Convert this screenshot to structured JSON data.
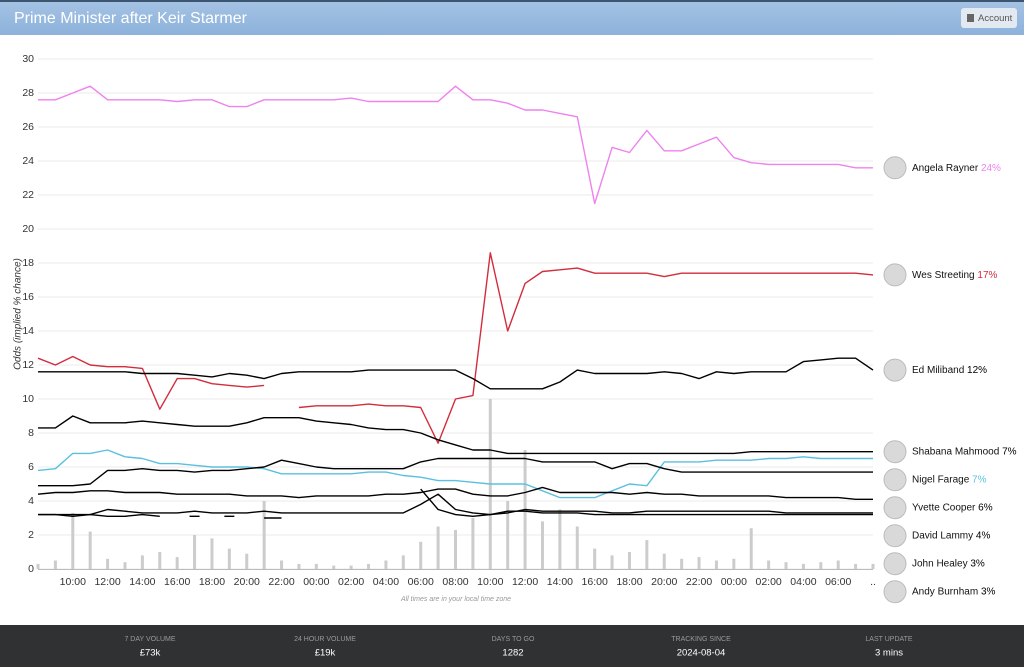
{
  "header": {
    "title": "Prime Minister after Keir Starmer",
    "account": "Account"
  },
  "chart_data": {
    "type": "line",
    "y_label": "Odds (implied % chance)",
    "note": "All times are in your local time zone",
    "categories": [
      null,
      null,
      "10:00",
      null,
      "12:00",
      null,
      "14:00",
      null,
      "16:00",
      null,
      "18:00",
      null,
      "20:00",
      null,
      "22:00",
      null,
      "00:00",
      null,
      "02:00",
      null,
      "04:00",
      null,
      "06:00",
      null,
      "08:00",
      null,
      "10:00",
      null,
      "12:00",
      null,
      "14:00",
      null,
      "16:00",
      null,
      "18:00",
      null,
      "20:00",
      null,
      "22:00",
      null,
      "00:00",
      null,
      "02:00",
      null,
      "04:00",
      null,
      "06:00",
      null,
      ".."
    ],
    "ylim": [
      0,
      30
    ],
    "yticks": [
      0,
      2,
      4,
      6,
      8,
      10,
      12,
      14,
      16,
      18,
      20,
      22,
      24,
      26,
      28,
      30
    ],
    "grid": true,
    "volume": {
      "color": "#cccccc",
      "values": [
        0.3,
        0.5,
        3.3,
        2.2,
        0.6,
        0.4,
        0.8,
        1.0,
        0.7,
        2.0,
        1.8,
        1.2,
        0.9,
        4.0,
        0.5,
        0.3,
        0.3,
        0.2,
        0.2,
        0.3,
        0.5,
        0.8,
        1.6,
        2.5,
        2.3,
        3.0,
        10.0,
        4.0,
        7.0,
        2.8,
        3.5,
        2.5,
        1.2,
        0.8,
        1.0,
        1.7,
        0.9,
        0.6,
        0.7,
        0.5,
        0.6,
        2.4,
        0.5,
        0.4,
        0.3,
        0.4,
        0.5,
        0.3,
        0.3
      ]
    },
    "series": [
      {
        "name": "Angela Rayner",
        "color": "#ee82ee",
        "latest": 24,
        "latest_label": "24%",
        "values": [
          27.6,
          27.6,
          28.0,
          28.4,
          27.6,
          27.6,
          27.6,
          27.6,
          27.5,
          27.6,
          27.6,
          27.2,
          27.2,
          27.6,
          27.6,
          27.6,
          27.6,
          27.6,
          27.7,
          27.5,
          27.5,
          27.5,
          27.5,
          27.5,
          28.4,
          27.6,
          27.6,
          27.4,
          27.0,
          27.0,
          26.8,
          26.6,
          21.5,
          24.8,
          24.5,
          25.8,
          24.6,
          24.6,
          25.0,
          25.4,
          24.2,
          23.9,
          23.8,
          23.8,
          23.8,
          23.8,
          23.8,
          23.6,
          23.6
        ]
      },
      {
        "name": "Wes Streeting",
        "color": "#d22d3c",
        "latest": 17,
        "latest_label": "17%",
        "values": [
          12.4,
          12.0,
          12.5,
          12.0,
          11.9,
          11.9,
          11.8,
          9.4,
          11.2,
          11.2,
          10.9,
          10.8,
          10.7,
          10.8,
          null,
          9.5,
          9.6,
          9.6,
          9.6,
          9.7,
          9.6,
          9.6,
          9.5,
          7.4,
          10.0,
          10.2,
          18.6,
          14.0,
          16.8,
          17.5,
          17.6,
          17.7,
          17.4,
          17.4,
          17.4,
          17.4,
          17.2,
          17.4,
          17.4,
          17.4,
          17.4,
          17.4,
          17.4,
          17.4,
          17.4,
          17.4,
          17.4,
          17.4,
          17.3
        ]
      },
      {
        "name": "Ed Miliband",
        "color": "#000000",
        "latest": 12,
        "latest_label": "12%",
        "values": [
          11.6,
          11.6,
          11.6,
          11.6,
          11.6,
          11.6,
          11.5,
          11.5,
          11.5,
          11.4,
          11.3,
          11.5,
          11.4,
          11.2,
          11.5,
          11.6,
          11.6,
          11.6,
          11.6,
          11.7,
          11.7,
          11.7,
          11.7,
          11.7,
          11.7,
          11.2,
          10.6,
          10.6,
          10.6,
          10.6,
          11.0,
          11.7,
          11.5,
          11.5,
          11.5,
          11.5,
          11.6,
          11.5,
          11.2,
          11.6,
          11.5,
          11.6,
          11.6,
          11.6,
          12.2,
          12.3,
          12.4,
          12.4,
          11.7
        ]
      },
      {
        "name": "Shabana Mahmood",
        "color": "#000000",
        "latest": 7,
        "latest_label": "7%",
        "values": [
          8.3,
          8.3,
          9.0,
          8.6,
          8.6,
          8.6,
          8.7,
          8.6,
          8.5,
          8.4,
          8.4,
          8.4,
          8.6,
          8.9,
          8.9,
          8.9,
          8.7,
          8.6,
          8.5,
          8.3,
          8.2,
          8.2,
          8.0,
          7.6,
          7.3,
          7.0,
          7.0,
          6.8,
          6.8,
          6.8,
          6.8,
          6.8,
          6.8,
          6.8,
          6.8,
          6.8,
          6.8,
          6.8,
          6.8,
          6.8,
          6.8,
          6.9,
          6.9,
          6.9,
          6.9,
          6.9,
          6.9,
          6.9,
          6.9
        ]
      },
      {
        "name": "Nigel Farage",
        "color": "#5bc0de",
        "latest": 7,
        "latest_label": "7%",
        "values": [
          5.8,
          5.9,
          6.8,
          6.8,
          7.0,
          6.6,
          6.5,
          6.2,
          6.2,
          6.1,
          6.0,
          6.0,
          6.0,
          5.9,
          5.6,
          5.6,
          5.6,
          5.6,
          5.6,
          5.7,
          5.7,
          5.5,
          5.4,
          5.2,
          5.2,
          5.1,
          5.0,
          5.0,
          5.0,
          4.6,
          4.2,
          4.2,
          4.2,
          4.6,
          5.0,
          4.9,
          6.3,
          6.3,
          6.3,
          6.4,
          6.4,
          6.4,
          6.5,
          6.5,
          6.6,
          6.5,
          6.5,
          6.5,
          6.5
        ]
      },
      {
        "name": "Yvette Cooper",
        "color": "#000000",
        "latest": 6,
        "latest_label": "6%",
        "values": [
          4.9,
          4.9,
          4.9,
          5.0,
          5.8,
          5.8,
          5.9,
          5.8,
          5.8,
          5.7,
          5.8,
          5.8,
          5.9,
          6.0,
          6.4,
          6.2,
          6.0,
          5.9,
          5.9,
          5.9,
          5.9,
          5.9,
          6.3,
          6.5,
          6.5,
          6.5,
          6.5,
          6.5,
          6.5,
          6.3,
          6.3,
          6.3,
          6.3,
          5.9,
          6.2,
          6.2,
          5.9,
          5.7,
          5.7,
          5.7,
          5.7,
          5.7,
          5.7,
          5.7,
          5.7,
          5.7,
          5.7,
          5.7,
          5.7
        ]
      },
      {
        "name": "David Lammy",
        "color": "#000000",
        "latest": 4,
        "latest_label": "4%",
        "values": [
          4.4,
          4.5,
          4.5,
          4.6,
          4.6,
          4.5,
          4.5,
          4.5,
          4.4,
          4.4,
          4.4,
          4.4,
          4.3,
          4.3,
          4.3,
          4.2,
          4.3,
          4.3,
          4.3,
          4.3,
          4.4,
          4.4,
          4.5,
          4.7,
          4.7,
          4.4,
          4.3,
          4.3,
          4.5,
          4.8,
          4.5,
          4.5,
          4.5,
          4.5,
          4.4,
          4.5,
          4.4,
          4.4,
          4.3,
          4.3,
          4.3,
          4.3,
          4.3,
          4.2,
          4.2,
          4.2,
          4.2,
          4.1,
          4.1
        ]
      },
      {
        "name": "John Healey",
        "color": "#000000",
        "latest": 3,
        "latest_label": "3%",
        "values": [
          3.2,
          3.2,
          3.2,
          3.2,
          3.5,
          3.4,
          3.3,
          3.3,
          3.3,
          3.4,
          3.3,
          3.3,
          3.3,
          3.4,
          3.3,
          3.3,
          3.3,
          3.3,
          3.3,
          3.3,
          3.3,
          3.3,
          3.8,
          4.4,
          3.5,
          3.3,
          3.2,
          3.3,
          3.5,
          3.4,
          3.4,
          3.4,
          3.4,
          3.3,
          3.3,
          3.4,
          3.4,
          3.4,
          3.4,
          3.4,
          3.4,
          3.4,
          3.4,
          3.3,
          3.3,
          3.3,
          3.3,
          3.3,
          3.3
        ]
      },
      {
        "name": "Andy Burnham",
        "color": "#000000",
        "latest": 3,
        "latest_label": "3%",
        "values": [
          3.2,
          3.2,
          3.1,
          3.2,
          3.1,
          3.1,
          3.2,
          3.1,
          null,
          3.1,
          null,
          3.1,
          null,
          3.0,
          3.0,
          null,
          null,
          null,
          null,
          null,
          null,
          null,
          4.7,
          3.5,
          3.2,
          3.1,
          3.2,
          3.4,
          3.4,
          3.3,
          3.3,
          3.3,
          3.2,
          3.2,
          3.2,
          3.2,
          3.2,
          3.2,
          3.2,
          3.2,
          3.2,
          3.2,
          3.2,
          3.2,
          3.2,
          3.2,
          3.2,
          3.2,
          3.2
        ]
      }
    ]
  },
  "footer": {
    "stats": [
      {
        "label": "7 DAY VOLUME",
        "value": "£73k"
      },
      {
        "label": "24 HOUR VOLUME",
        "value": "£19k"
      },
      {
        "label": "DAYS TO GO",
        "value": "1282"
      },
      {
        "label": "TRACKING SINCE",
        "value": "2024-08-04"
      },
      {
        "label": "LAST UPDATE",
        "value": "3 mins"
      }
    ]
  }
}
